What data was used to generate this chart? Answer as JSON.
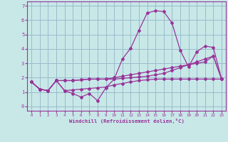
{
  "x_labels": [
    0,
    1,
    2,
    3,
    4,
    5,
    6,
    7,
    8,
    9,
    10,
    11,
    12,
    13,
    14,
    15,
    16,
    17,
    18,
    19,
    20,
    21,
    22,
    23
  ],
  "curve1": [
    1.7,
    1.2,
    1.1,
    1.8,
    1.1,
    0.9,
    0.65,
    0.9,
    0.4,
    1.3,
    1.9,
    3.3,
    4.05,
    5.3,
    6.5,
    6.65,
    6.6,
    5.8,
    3.9,
    2.75,
    3.8,
    4.2,
    4.1,
    1.9
  ],
  "curve2": [
    1.7,
    1.2,
    1.1,
    1.8,
    1.8,
    1.8,
    1.85,
    1.9,
    1.9,
    1.9,
    1.9,
    1.95,
    2.0,
    2.05,
    2.1,
    2.2,
    2.3,
    2.5,
    2.7,
    2.9,
    3.1,
    3.3,
    3.5,
    1.9
  ],
  "curve3": [
    1.7,
    1.2,
    1.1,
    1.8,
    1.1,
    1.15,
    1.2,
    1.25,
    1.3,
    1.35,
    1.5,
    1.6,
    1.7,
    1.8,
    1.85,
    1.9,
    1.9,
    1.9,
    1.9,
    1.9,
    1.9,
    1.9,
    1.9,
    1.9
  ],
  "curve4": [
    1.7,
    1.2,
    1.1,
    1.8,
    1.8,
    1.8,
    1.85,
    1.9,
    1.9,
    1.9,
    2.0,
    2.1,
    2.2,
    2.3,
    2.4,
    2.5,
    2.6,
    2.7,
    2.8,
    2.9,
    3.0,
    3.1,
    3.5,
    1.9
  ],
  "color": "#993399",
  "bg_color": "#c8e8e8",
  "grid_color": "#99bbcc",
  "ylim": [
    -0.3,
    7.3
  ],
  "xlim": [
    -0.5,
    23.5
  ],
  "xlabel": "Windchill (Refroidissement éolien,°C)",
  "yticks": [
    0,
    1,
    2,
    3,
    4,
    5,
    6,
    7
  ],
  "xticks": [
    0,
    1,
    2,
    3,
    4,
    5,
    6,
    7,
    8,
    9,
    10,
    11,
    12,
    13,
    14,
    15,
    16,
    17,
    18,
    19,
    20,
    21,
    22,
    23
  ]
}
